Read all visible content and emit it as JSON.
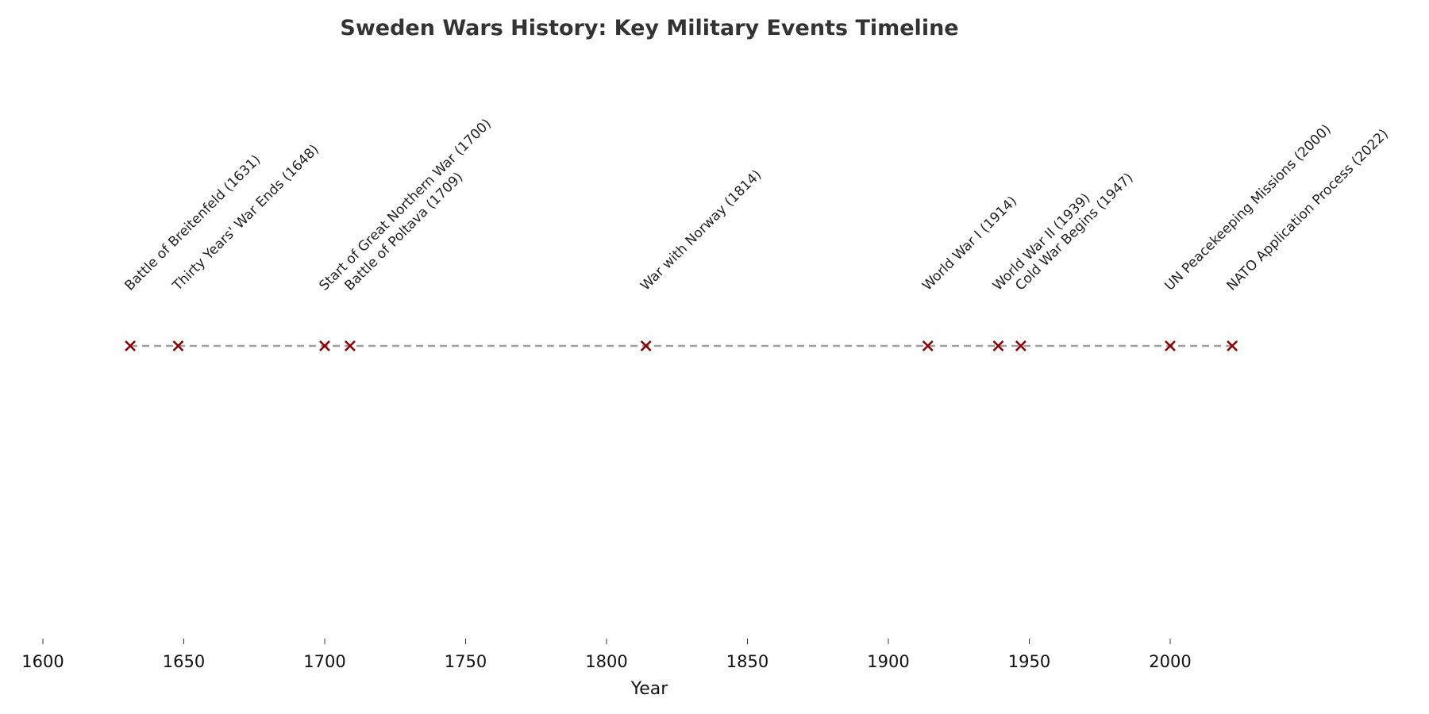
{
  "chart_data": {
    "type": "scatter",
    "title": "Sweden Wars History: Key Military Events Timeline",
    "xlabel": "Year",
    "ylabel": "",
    "xlim": [
      1600,
      2040
    ],
    "xticks": [
      "1600",
      "1650",
      "1700",
      "1750",
      "1800",
      "1850",
      "1900",
      "1950",
      "2000"
    ],
    "grid": false,
    "marker_color": "#8b0000",
    "line_color": "#a0a0a0",
    "events": [
      {
        "year": 1631,
        "label": "Battle of Breitenfeld (1631)"
      },
      {
        "year": 1648,
        "label": "Thirty Years' War Ends (1648)"
      },
      {
        "year": 1700,
        "label": "Start of Great Northern War (1700)"
      },
      {
        "year": 1709,
        "label": "Battle of Poltava (1709)"
      },
      {
        "year": 1814,
        "label": "War with Norway (1814)"
      },
      {
        "year": 1914,
        "label": "World War I (1914)"
      },
      {
        "year": 1939,
        "label": "World War II (1939)"
      },
      {
        "year": 1947,
        "label": "Cold War Begins (1947)"
      },
      {
        "year": 2000,
        "label": "UN Peacekeeping Missions (2000)"
      },
      {
        "year": 2022,
        "label": "NATO Application Process (2022)"
      }
    ]
  }
}
